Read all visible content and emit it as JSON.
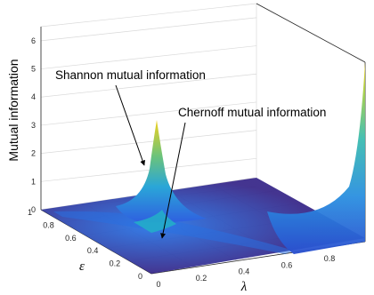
{
  "chart_data": {
    "type": "surface",
    "zlabel": "Mutual information",
    "xlabel": "λ",
    "ylabel": "ε",
    "x_ticks": [
      "0",
      "0.2",
      "0.4",
      "0.6",
      "0.8"
    ],
    "y_ticks": [
      "0",
      "0.2",
      "0.4",
      "0.6",
      "0.8",
      "1"
    ],
    "z_ticks": [
      "0",
      "1",
      "2",
      "3",
      "4",
      "5",
      "6"
    ],
    "xlim": [
      0,
      1
    ],
    "ylim": [
      0,
      1
    ],
    "zlim": [
      0,
      6.5
    ],
    "grid": true,
    "colormap": "parula",
    "series": [
      {
        "name": "Shannon mutual information",
        "peaks": [
          {
            "x": 0,
            "y": 0.5,
            "z": 2.5
          },
          {
            "x": 1,
            "y": 0,
            "z": 5.6
          }
        ]
      },
      {
        "name": "Chernoff mutual information",
        "peaks": [
          {
            "x": 0,
            "y": 0.5,
            "z": 0.3
          }
        ]
      }
    ],
    "annotations": [
      {
        "text": "Shannon mutual information",
        "target": "Shannon peak"
      },
      {
        "text": "Chernoff mutual information",
        "target": "Chernoff ridge"
      }
    ]
  },
  "colors": {
    "deep_blue": "#3a2a8a",
    "mid_blue": "#2a6ae0",
    "cyan": "#2fb7c8",
    "green": "#80c060",
    "yellow": "#f2d21e"
  }
}
